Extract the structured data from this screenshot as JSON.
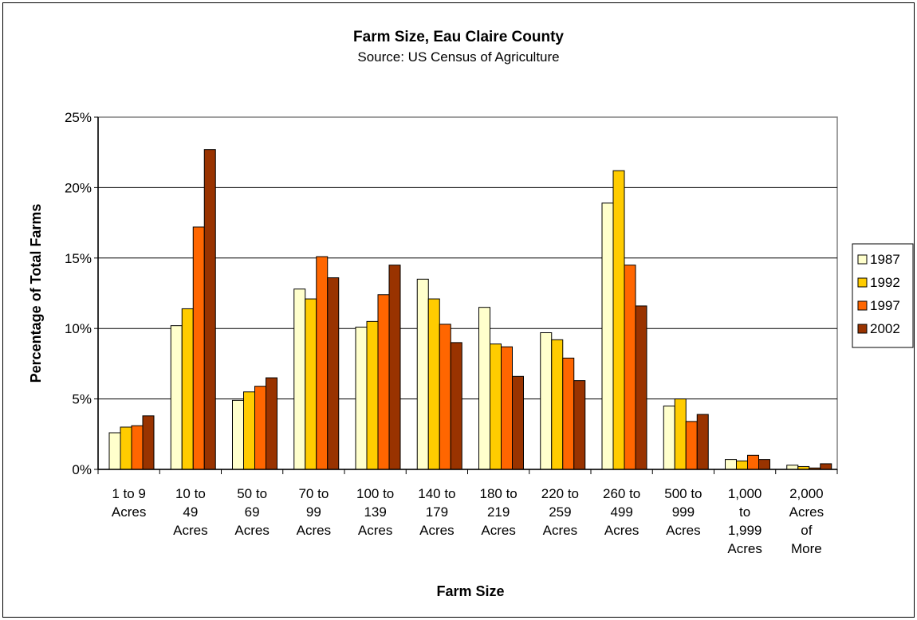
{
  "chart_data": {
    "type": "bar",
    "title": "Farm Size, Eau Claire County",
    "subtitle": "Source: US Census of Agriculture",
    "xlabel": "Farm Size",
    "ylabel": "Percentage of Total Farms",
    "ylim": [
      0,
      25
    ],
    "yticks": [
      "0%",
      "5%",
      "10%",
      "15%",
      "20%",
      "25%"
    ],
    "ytick_values": [
      0,
      5,
      10,
      15,
      20,
      25
    ],
    "grid": true,
    "legend_position": "right",
    "categories": [
      [
        "1 to 9",
        "Acres"
      ],
      [
        "10 to",
        "49",
        "Acres"
      ],
      [
        "50 to",
        "69",
        "Acres"
      ],
      [
        "70 to",
        "99",
        "Acres"
      ],
      [
        "100 to",
        "139",
        "Acres"
      ],
      [
        "140 to",
        "179",
        "Acres"
      ],
      [
        "180 to",
        "219",
        "Acres"
      ],
      [
        "220 to",
        "259",
        "Acres"
      ],
      [
        "260 to",
        "499",
        "Acres"
      ],
      [
        "500 to",
        "999",
        "Acres"
      ],
      [
        "1,000",
        "to",
        "1,999",
        "Acres"
      ],
      [
        "2,000",
        "Acres",
        "of",
        "More"
      ]
    ],
    "series": [
      {
        "name": "1987",
        "color": "#FFFFCC",
        "values": [
          2.6,
          10.2,
          4.9,
          12.8,
          10.1,
          13.5,
          11.5,
          9.7,
          18.9,
          4.5,
          0.7,
          0.3
        ]
      },
      {
        "name": "1992",
        "color": "#FFCC00",
        "values": [
          3.0,
          11.4,
          5.5,
          12.1,
          10.5,
          12.1,
          8.9,
          9.2,
          21.2,
          5.0,
          0.6,
          0.2
        ]
      },
      {
        "name": "1997",
        "color": "#FF6600",
        "values": [
          3.1,
          17.2,
          5.9,
          15.1,
          12.4,
          10.3,
          8.7,
          7.9,
          14.5,
          3.4,
          1.0,
          0.1
        ]
      },
      {
        "name": "2002",
        "color": "#993300",
        "values": [
          3.8,
          22.7,
          6.5,
          13.6,
          14.5,
          9.0,
          6.6,
          6.3,
          11.6,
          3.9,
          0.7,
          0.4
        ]
      }
    ]
  }
}
